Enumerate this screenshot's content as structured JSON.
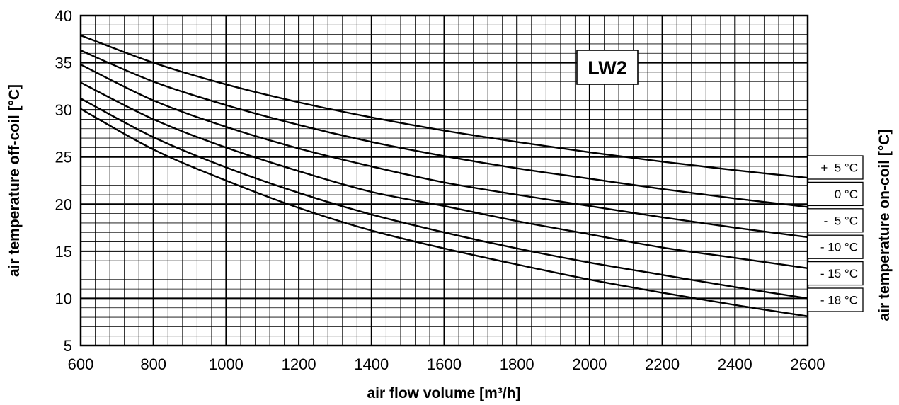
{
  "chart_data": {
    "type": "line",
    "title": "",
    "badge": "LW2",
    "xlabel": "air flow volume [m³/h]",
    "ylabel": "air temperature off-coil [°C]",
    "ylabel_right": "air temperature on-coil [°C]",
    "xlim": [
      600,
      2600
    ],
    "ylim": [
      5,
      40
    ],
    "x_ticks": [
      600,
      800,
      1000,
      1200,
      1400,
      1600,
      1800,
      2000,
      2200,
      2400,
      2600
    ],
    "y_ticks": [
      5,
      10,
      15,
      20,
      25,
      30,
      35,
      40
    ],
    "grid": true,
    "x_minor_step": 40,
    "y_minor_step": 1,
    "legend_placement": "right",
    "x": [
      600,
      800,
      1000,
      1200,
      1400,
      1600,
      1800,
      2000,
      2200,
      2400,
      2600
    ],
    "series": [
      {
        "name": "+  5 °C",
        "values": [
          37.9,
          35.0,
          32.7,
          30.8,
          29.2,
          27.8,
          26.6,
          25.5,
          24.5,
          23.6,
          22.8
        ]
      },
      {
        "name": "0 °C",
        "values": [
          36.3,
          33.0,
          30.5,
          28.4,
          26.6,
          25.1,
          23.8,
          22.7,
          21.6,
          20.6,
          19.7
        ]
      },
      {
        "name": "-  5 °C",
        "values": [
          34.8,
          31.0,
          28.2,
          25.9,
          24.0,
          22.3,
          21.0,
          19.8,
          18.6,
          17.5,
          16.5
        ]
      },
      {
        "name": "- 10 °C",
        "values": [
          32.9,
          29.0,
          26.0,
          23.5,
          21.3,
          19.8,
          18.2,
          16.8,
          15.4,
          14.3,
          13.2
        ]
      },
      {
        "name": "- 15 °C",
        "values": [
          31.2,
          27.1,
          23.9,
          21.2,
          18.9,
          17.0,
          15.3,
          13.8,
          12.5,
          11.2,
          10.0
        ]
      },
      {
        "name": "- 18 °C",
        "values": [
          30.1,
          25.8,
          22.5,
          19.6,
          17.2,
          15.3,
          13.6,
          12.0,
          10.6,
          9.3,
          8.1
        ]
      }
    ]
  }
}
